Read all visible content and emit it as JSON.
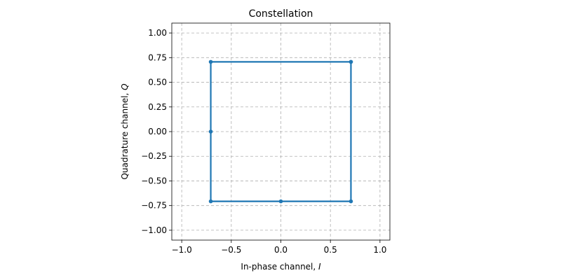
{
  "chart_data": {
    "type": "line",
    "title": "Constellation",
    "xlabel": "In-phase channel, ",
    "xlabel_var": "I",
    "ylabel": "Quadrature channel, ",
    "ylabel_var": "Q",
    "xlim": [
      -1.1,
      1.1
    ],
    "ylim": [
      -1.1,
      1.1
    ],
    "xticks": [
      -1.0,
      -0.5,
      0.0,
      0.5,
      1.0
    ],
    "xtick_labels": [
      "−1.0",
      "−0.5",
      "0.0",
      "0.5",
      "1.0"
    ],
    "yticks": [
      1.0,
      0.75,
      0.5,
      0.25,
      0.0,
      -0.25,
      -0.5,
      -0.75,
      -1.0
    ],
    "ytick_labels": [
      "1.00",
      "0.75",
      "0.50",
      "0.25",
      "0.00",
      "−0.25",
      "−0.50",
      "−0.75",
      "−1.00"
    ],
    "grid": true,
    "series": [
      {
        "color": "#1f77b4",
        "x": [
          0.707,
          0.707,
          0.0,
          -0.707,
          -0.707,
          -0.707,
          0.707
        ],
        "y": [
          0.707,
          -0.707,
          -0.707,
          -0.707,
          0.0,
          0.707,
          0.707
        ]
      }
    ]
  }
}
